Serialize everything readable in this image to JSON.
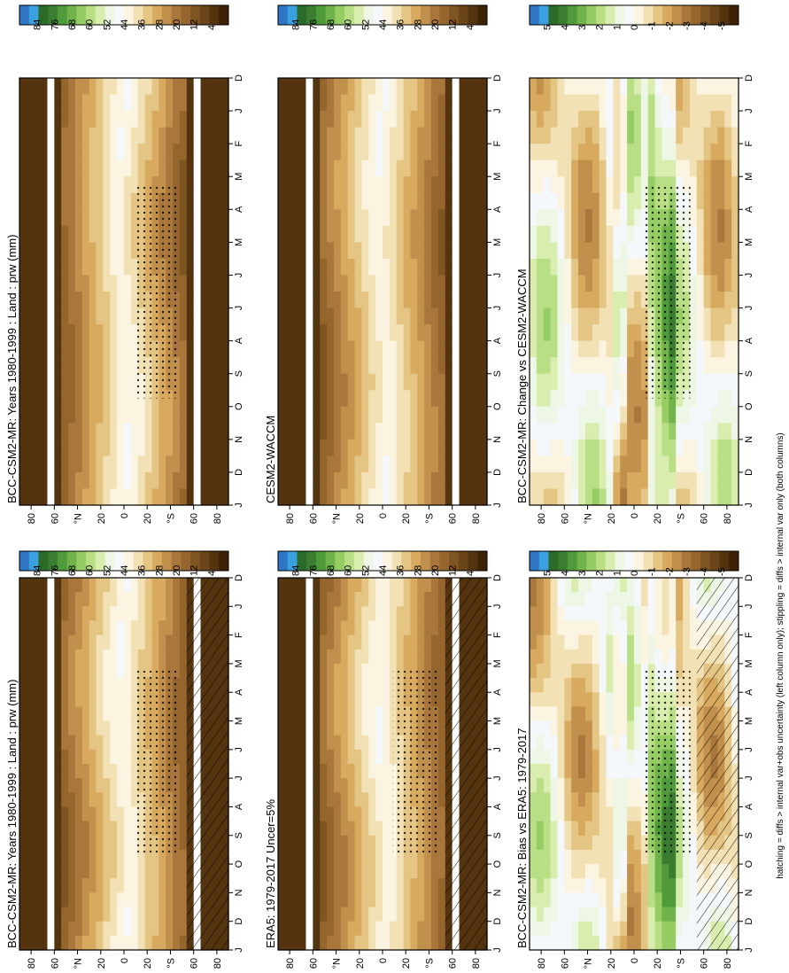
{
  "figure": {
    "footnote": "hatching = diffs > internal var+obs uncertainty (left column only); stippling = diffs > internal var only (both columns)"
  },
  "colors": {
    "abs_scale": [
      "#3d2306",
      "#54340f",
      "#6b4519",
      "#7f5423",
      "#94652d",
      "#a9773b",
      "#c0904c",
      "#d7aa5f",
      "#e5c583",
      "#f2e1b4",
      "#fbf4e1",
      "#f4f8fb",
      "#eef7e6",
      "#d8edae",
      "#b9df86",
      "#96cc64",
      "#6fb34a",
      "#4f9a3a",
      "#3a7d30",
      "#2b6b29",
      "#3aa0df",
      "#2e75c4"
    ],
    "diff_scale": [
      "#3d2306",
      "#54340f",
      "#6b4519",
      "#7f5423",
      "#94652d",
      "#a9773b",
      "#c0904c",
      "#d7aa5f",
      "#e5c583",
      "#f2e1b4",
      "#fbf4e1",
      "#f4f8fb",
      "#eef7e6",
      "#d8edae",
      "#b9df86",
      "#96cc64",
      "#6fb34a",
      "#4f9a3a",
      "#3a7d30",
      "#2b6b29",
      "#3aa0df",
      "#2e75c4"
    ]
  },
  "chart_data": [
    {
      "type": "heatmap",
      "id": "left-top",
      "title": "BCC-CSM2-MR: Years 1980-1999 : Land : prw (mm)",
      "x_ticks": [
        "D",
        "J",
        "F",
        "M",
        "A",
        "M",
        "J",
        "J",
        "A",
        "S",
        "O",
        "N",
        "D",
        "J"
      ],
      "y_ticks": [
        "80",
        "60",
        "°N",
        "20",
        "0",
        "20",
        "°S",
        "60",
        "80"
      ],
      "colorbar_labels": [
        "84",
        "76",
        "68",
        "60",
        "52",
        "44",
        "36",
        "28",
        "20",
        "12",
        "4"
      ],
      "scale": "abs",
      "hatching": true,
      "stippling": true
    },
    {
      "type": "heatmap",
      "id": "right-top",
      "title": "BCC-CSM2-MR: Years 1980-1999 : Land : prw (mm)",
      "x_ticks": [
        "D",
        "J",
        "F",
        "M",
        "A",
        "M",
        "J",
        "J",
        "A",
        "S",
        "O",
        "N",
        "D",
        "J"
      ],
      "y_ticks": [
        "80",
        "60",
        "°N",
        "20",
        "0",
        "20",
        "°S",
        "60",
        "80"
      ],
      "colorbar_labels": [
        "84",
        "76",
        "68",
        "60",
        "52",
        "44",
        "36",
        "28",
        "20",
        "12",
        "4"
      ],
      "scale": "abs",
      "hatching": false,
      "stippling": true
    },
    {
      "type": "heatmap",
      "id": "left-mid",
      "title": "ERA5: 1979-2017 Uncer=5%",
      "x_ticks": [
        "D",
        "J",
        "F",
        "M",
        "A",
        "M",
        "J",
        "J",
        "A",
        "S",
        "O",
        "N",
        "D",
        "J"
      ],
      "y_ticks": [
        "80",
        "60",
        "°N",
        "20",
        "0",
        "20",
        "°S",
        "60",
        "80"
      ],
      "colorbar_labels": [
        "84",
        "76",
        "68",
        "60",
        "52",
        "44",
        "36",
        "28",
        "20",
        "12",
        "4"
      ],
      "scale": "abs",
      "hatching": true,
      "stippling": true
    },
    {
      "type": "heatmap",
      "id": "right-mid",
      "title": "CESM2-WACCM",
      "x_ticks": [
        "D",
        "J",
        "F",
        "M",
        "A",
        "M",
        "J",
        "J",
        "A",
        "S",
        "O",
        "N",
        "D",
        "J"
      ],
      "y_ticks": [
        "80",
        "60",
        "°N",
        "20",
        "0",
        "20",
        "°S",
        "60",
        "80"
      ],
      "colorbar_labels": [
        "84",
        "76",
        "68",
        "60",
        "52",
        "44",
        "36",
        "28",
        "20",
        "12",
        "4"
      ],
      "scale": "abs",
      "hatching": false,
      "stippling": false
    },
    {
      "type": "heatmap",
      "id": "left-bot",
      "title": "BCC-CSM2-MR: Bias vs ERA5: 1979-2017",
      "x_ticks": [
        "D",
        "J",
        "F",
        "M",
        "A",
        "M",
        "J",
        "J",
        "A",
        "S",
        "O",
        "N",
        "D",
        "J"
      ],
      "y_ticks": [
        "80",
        "60",
        "°N",
        "20",
        "0",
        "20",
        "°S",
        "60",
        "80"
      ],
      "colorbar_labels": [
        "5",
        "4",
        "3",
        "2",
        "1",
        "0",
        "-1",
        "-2",
        "-3",
        "-4",
        "-5"
      ],
      "scale": "diff",
      "hatching": true,
      "stippling": true
    },
    {
      "type": "heatmap",
      "id": "right-bot",
      "title": "BCC-CSM2-MR: Change vs CESM2-WACCM",
      "x_ticks": [
        "D",
        "J",
        "F",
        "M",
        "A",
        "M",
        "J",
        "J",
        "A",
        "S",
        "O",
        "N",
        "D",
        "J"
      ],
      "y_ticks": [
        "80",
        "60",
        "°N",
        "20",
        "0",
        "20",
        "°S",
        "60",
        "80"
      ],
      "colorbar_labels": [
        "5",
        "4",
        "3",
        "2",
        "1",
        "0",
        "-1",
        "-2",
        "-3",
        "-4",
        "-5"
      ],
      "scale": "diff",
      "hatching": false,
      "stippling": true
    }
  ]
}
